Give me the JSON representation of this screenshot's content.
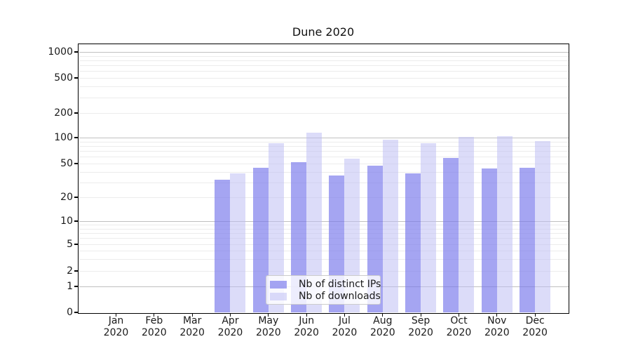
{
  "title": "Dune 2020",
  "chart_data": {
    "type": "bar",
    "title": "Dune 2020",
    "categories": [
      "Jan 2020",
      "Feb 2020",
      "Mar 2020",
      "Apr 2020",
      "May 2020",
      "Jun 2020",
      "Jul 2020",
      "Aug 2020",
      "Sep 2020",
      "Oct 2020",
      "Nov 2020",
      "Dec 2020"
    ],
    "series": [
      {
        "name": "Nb of distinct IPs",
        "values": [
          0,
          0,
          0,
          32,
          45,
          52,
          36,
          47,
          38,
          58,
          44,
          45
        ]
      },
      {
        "name": "Nb of downloads",
        "values": [
          0,
          0,
          0,
          38,
          86,
          115,
          57,
          95,
          86,
          102,
          105,
          91
        ]
      }
    ],
    "xlabel": "",
    "ylabel": "",
    "yscale": "symlog",
    "yticks": [
      0,
      1,
      2,
      5,
      10,
      20,
      50,
      100,
      200,
      500,
      1000
    ],
    "ylim": [
      0,
      1300
    ],
    "grid": "on",
    "legend_position": "lower center"
  },
  "colors": {
    "bar_distinct_ips": "rgba(118,118,235,0.66)",
    "bar_downloads": "rgba(187,187,244,0.52)",
    "grid_major": "#c0c0c0",
    "grid_minor": "#ececec",
    "spine": "#000000",
    "text": "#1a1a1a",
    "legend_bg": "rgba(255,255,255,0.8)",
    "legend_border": "#cccccc"
  }
}
